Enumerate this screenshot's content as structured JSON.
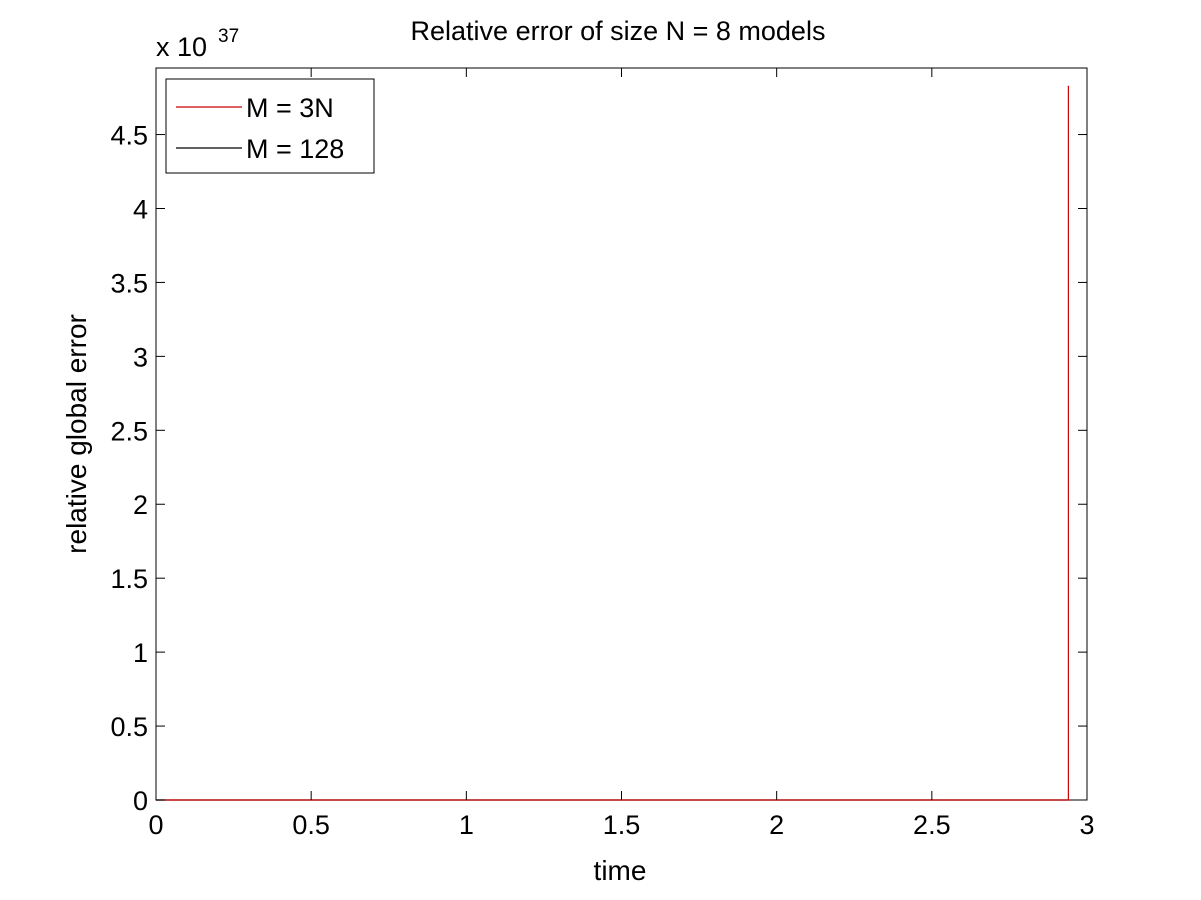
{
  "chart_data": {
    "type": "line",
    "title": "Relative error of size N = 8 models",
    "xlabel": "time",
    "ylabel": "relative global error",
    "y_exponent_label": "x 10",
    "y_exponent_power": "37",
    "xlim": [
      0,
      3
    ],
    "ylim": [
      0,
      4.95
    ],
    "x_ticks": [
      0,
      0.5,
      1,
      1.5,
      2,
      2.5,
      3
    ],
    "x_tick_labels": [
      "0",
      "0.5",
      "1",
      "1.5",
      "2",
      "2.5",
      "3"
    ],
    "y_ticks": [
      0,
      0.5,
      1,
      1.5,
      2,
      2.5,
      3,
      3.5,
      4,
      4.5
    ],
    "y_tick_labels": [
      "0",
      "0.5",
      "1",
      "1.5",
      "2",
      "2.5",
      "3",
      "3.5",
      "4",
      "4.5"
    ],
    "grid": false,
    "legend_position": "top-left",
    "series": [
      {
        "name": "M = 3N",
        "color": "#cc0000",
        "x": [
          0,
          0.5,
          1,
          1.5,
          2,
          2.5,
          2.9,
          2.94,
          2.94
        ],
        "y": [
          0,
          0,
          0,
          0,
          0,
          0,
          0,
          0,
          4.83
        ]
      },
      {
        "name": "M = 128",
        "color": "#000000",
        "x": [
          0,
          0.5,
          1,
          1.5,
          2,
          2.5,
          2.94
        ],
        "y": [
          0,
          0,
          0,
          0,
          0,
          0,
          0
        ]
      }
    ]
  }
}
